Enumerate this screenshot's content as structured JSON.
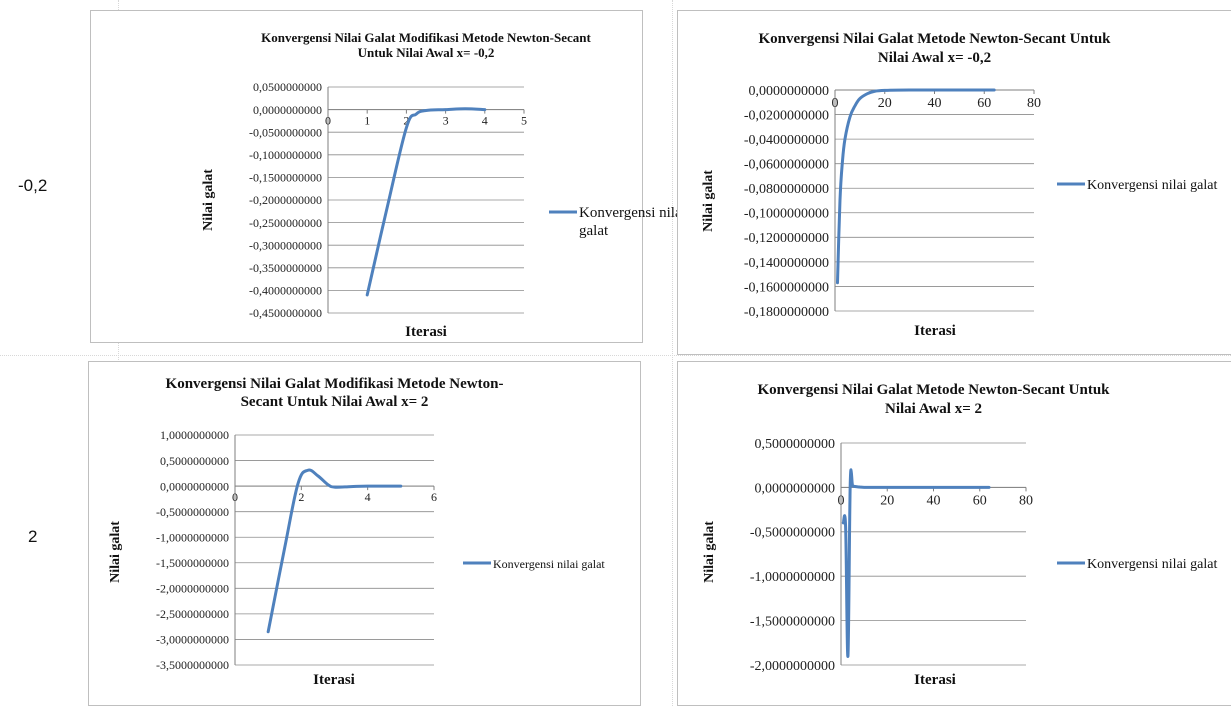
{
  "row_labels": [
    "-0,2",
    "2"
  ],
  "colors": {
    "series": "#4f81bd",
    "gridline": "#8c8c8c",
    "axis": "#7f7f7f"
  },
  "chart_data": [
    {
      "type": "line",
      "title": [
        "Konvergensi Nilai Galat Modifikasi Metode Newton-Secant",
        "Untuk Nilai Awal  x= -0,2"
      ],
      "xlabel": "Iterasi",
      "ylabel": "Nilai galat",
      "xlim": [
        0,
        5
      ],
      "xticks": [
        "0",
        "1",
        "2",
        "3",
        "4",
        "5"
      ],
      "ylim": [
        -0.45,
        0.05
      ],
      "yticks": [
        "0,0500000000",
        "0,0000000000",
        "-0,0500000000",
        "-0,1000000000",
        "-0,1500000000",
        "-0,2000000000",
        "-0,2500000000",
        "-0,3000000000",
        "-0,3500000000",
        "-0,4000000000",
        "-0,4500000000"
      ],
      "grid": true,
      "legend_position": "right",
      "series": [
        {
          "name": "Konvergensi nilai galat",
          "x": [
            1,
            1.5,
            2,
            2.25,
            2.5,
            3,
            3.5,
            4
          ],
          "y": [
            -0.41,
            -0.22,
            -0.04,
            -0.01,
            -0.002,
            0.0,
            0.002,
            0.0
          ]
        }
      ]
    },
    {
      "type": "line",
      "title": [
        "Konvergensi Nilai Galat Metode Newton-Secant  Untuk",
        "Nilai Awal  x= -0,2"
      ],
      "xlabel": "Iterasi",
      "ylabel": "Nilai galat",
      "xlim": [
        0,
        80
      ],
      "xticks": [
        "0",
        "20",
        "40",
        "60",
        "80"
      ],
      "ylim": [
        -0.18,
        0.0
      ],
      "yticks": [
        "0,0000000000",
        "-0,0200000000",
        "-0,0400000000",
        "-0,0600000000",
        "-0,0800000000",
        "-0,1000000000",
        "-0,1200000000",
        "-0,1400000000",
        "-0,1600000000",
        "-0,1800000000"
      ],
      "grid": true,
      "legend_position": "right",
      "series": [
        {
          "name": "Konvergensi nilai galat",
          "x": [
            1,
            2,
            3,
            4,
            6,
            8,
            10,
            13,
            16,
            20,
            30,
            40,
            50,
            64
          ],
          "y": [
            -0.157,
            -0.09,
            -0.058,
            -0.04,
            -0.022,
            -0.013,
            -0.007,
            -0.003,
            -0.001,
            -0.0003,
            0.0,
            0.0,
            0.0,
            0.0
          ]
        }
      ]
    },
    {
      "type": "line",
      "title": [
        "Konvergensi Nilai Galat Modifikasi Metode Newton-",
        "Secant Untuk  Nilai Awal  x= 2"
      ],
      "xlabel": "Iterasi",
      "ylabel": "Nilai galat",
      "xlim": [
        0,
        6
      ],
      "xticks": [
        "0",
        "2",
        "4",
        "6"
      ],
      "ylim": [
        -3.5,
        1.0
      ],
      "yticks": [
        "1,0000000000",
        "0,5000000000",
        "0,0000000000",
        "-0,5000000000",
        "-1,0000000000",
        "-1,5000000000",
        "-2,0000000000",
        "-2,5000000000",
        "-3,0000000000",
        "-3,5000000000"
      ],
      "grid": true,
      "legend_position": "right",
      "series": [
        {
          "name": "Konvergensi nilai galat",
          "x": [
            1,
            1.5,
            1.9,
            2.2,
            2.5,
            2.8,
            3,
            3.5,
            4,
            5
          ],
          "y": [
            -2.85,
            -1.2,
            0.05,
            0.31,
            0.2,
            0.03,
            -0.02,
            -0.01,
            0.0,
            0.0
          ]
        }
      ]
    },
    {
      "type": "line",
      "title": [
        "Konvergensi Nilai Galat Metode Newton-Secant  Untuk",
        "Nilai Awal  x= 2"
      ],
      "xlabel": "Iterasi",
      "ylabel": "Nilai galat",
      "xlim": [
        0,
        80
      ],
      "xticks": [
        "0",
        "20",
        "40",
        "60",
        "80"
      ],
      "ylim": [
        -2.0,
        0.5
      ],
      "yticks": [
        "0,5000000000",
        "0,0000000000",
        "-0,5000000000",
        "-1,0000000000",
        "-1,5000000000",
        "-2,0000000000"
      ],
      "grid": true,
      "legend_position": "right",
      "series": [
        {
          "name": "Konvergensi nilai galat",
          "x": [
            1,
            2,
            3,
            4,
            5,
            6,
            8,
            10,
            14,
            20,
            30,
            40,
            50,
            64
          ],
          "y": [
            -0.4,
            -0.45,
            -1.9,
            0.05,
            0.02,
            0.01,
            0.005,
            0.0,
            0.0,
            0.0,
            0.0,
            0.0,
            0.0,
            0.0
          ]
        }
      ]
    }
  ]
}
